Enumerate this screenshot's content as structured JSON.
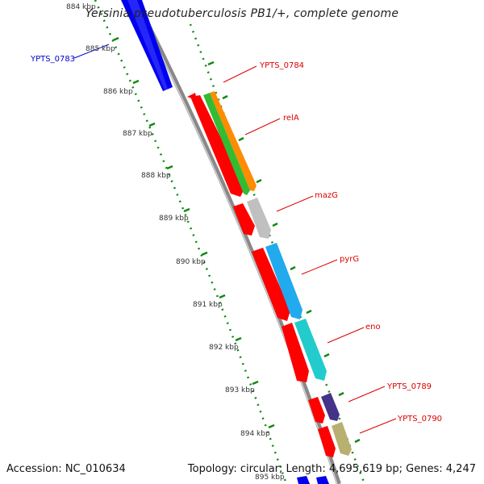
{
  "title": "Yersinia pseudotuberculosis PB1/+, complete genome",
  "accession": "Accession: NC_010634",
  "summary": "Topology: circular; Length: 4,695,619 bp; Genes: 4,247",
  "ticks": [
    "884 kbp",
    "885 kbp",
    "886 kbp",
    "887 kbp",
    "888 kbp",
    "889 kbp",
    "890 kbp",
    "891 kbp",
    "892 kbp",
    "893 kbp",
    "894 kbp",
    "895 kbp"
  ],
  "genes": [
    {
      "label": "YPTS_0783",
      "color": "#0000ee",
      "label_color": "#0000cc"
    },
    {
      "label": "YPTS_0784",
      "color": "#ff8c00",
      "label_color": "#dd0000"
    },
    {
      "label": "relA",
      "color": "#33bb33",
      "label_color": "#dd0000"
    },
    {
      "label": "mazG",
      "color": "#c0c0c0",
      "label_color": "#dd0000"
    },
    {
      "label": "pyrG",
      "color": "#22aaee",
      "label_color": "#dd0000"
    },
    {
      "label": "eno",
      "color": "#22cccc",
      "label_color": "#dd0000"
    },
    {
      "label": "YPTS_0789",
      "color": "#443388",
      "label_color": "#dd0000"
    },
    {
      "label": "YPTS_0790",
      "color": "#b8b070",
      "label_color": "#dd0000"
    }
  ],
  "colors": {
    "cds_strand": "#ff0000",
    "backbone": "#888888",
    "dots": "#118811"
  }
}
